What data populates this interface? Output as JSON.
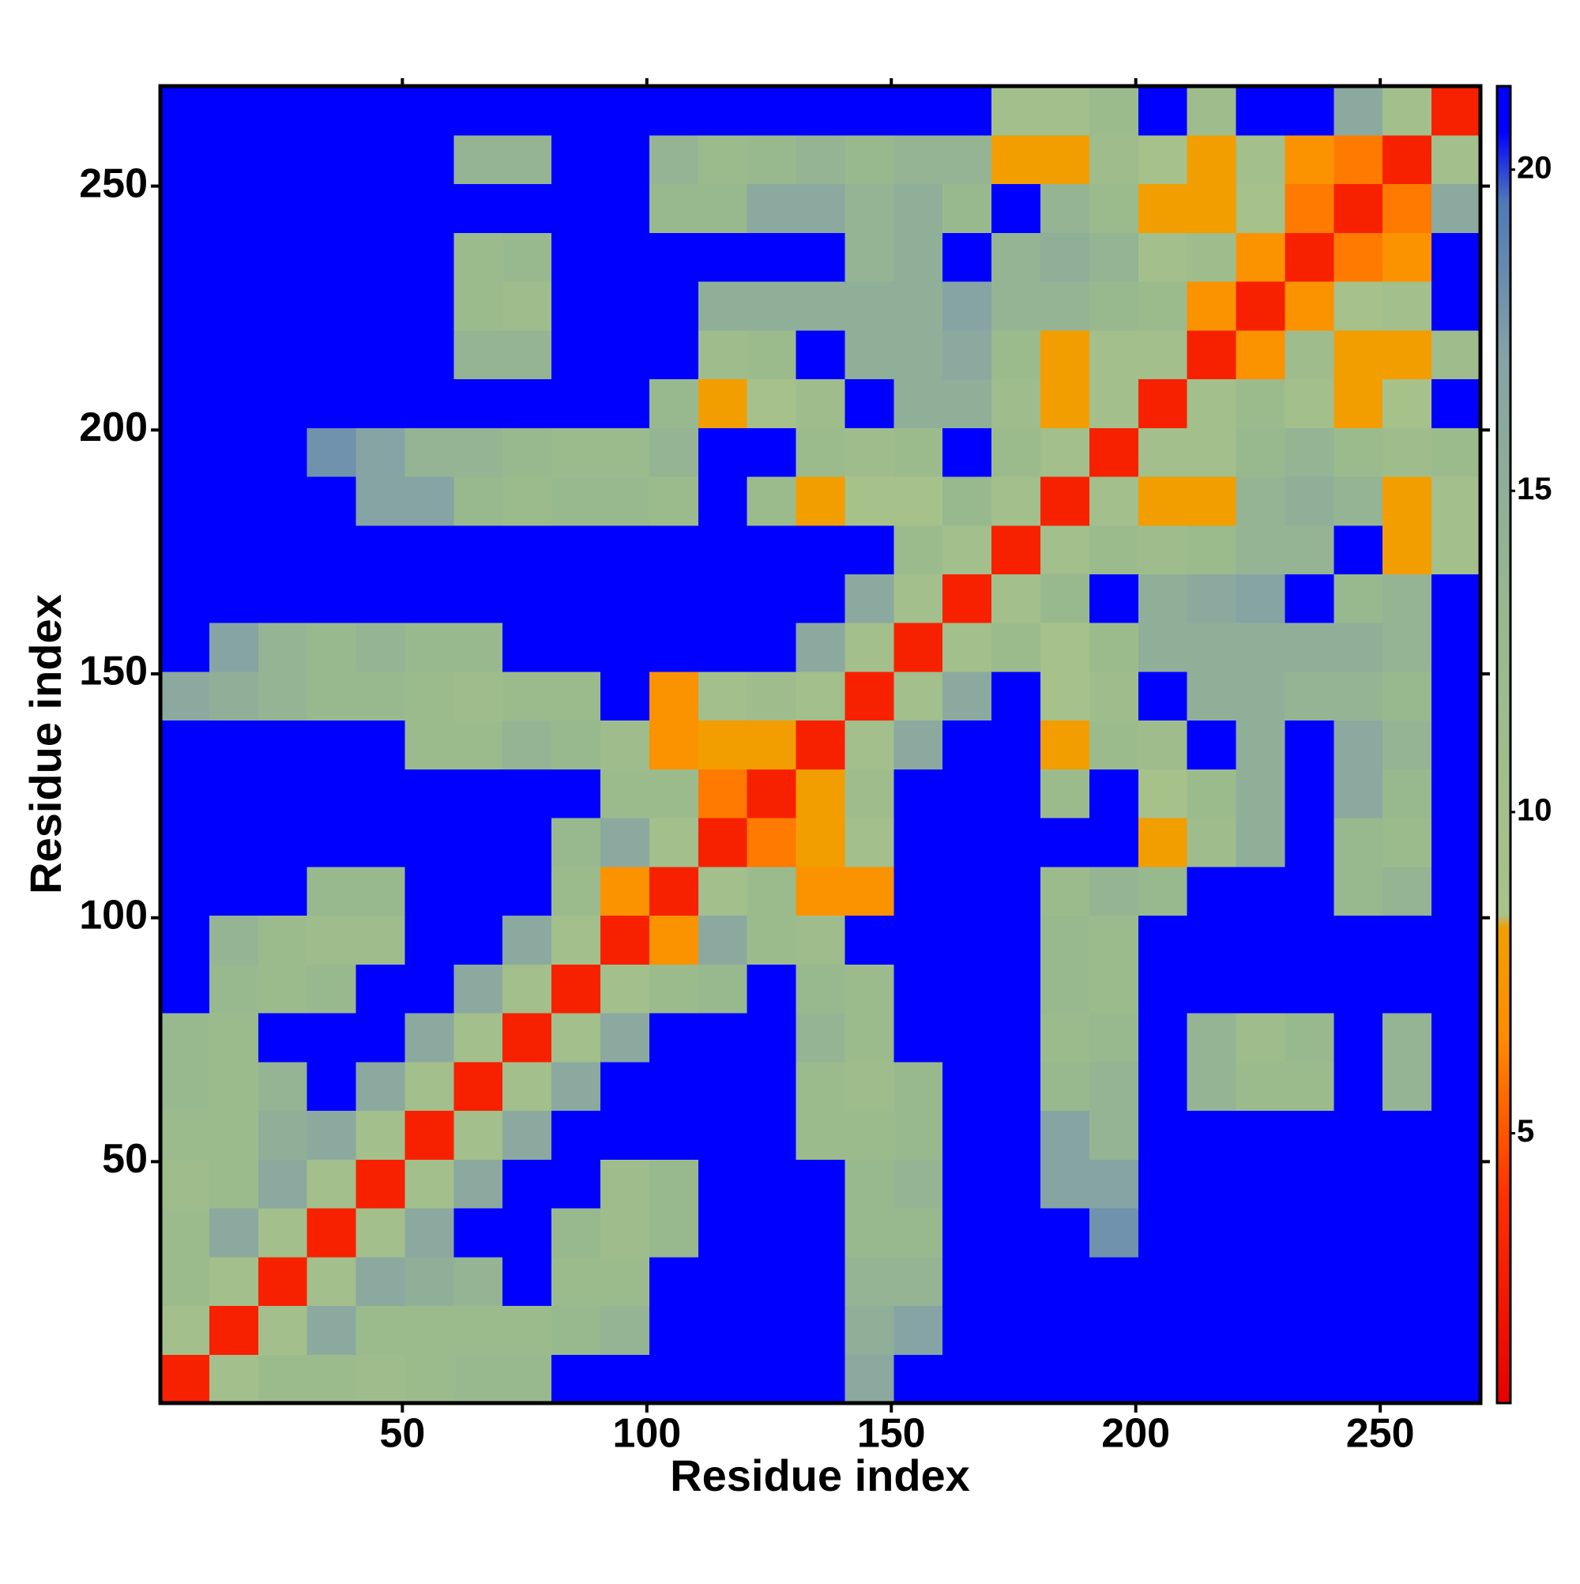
{
  "chart_data": {
    "type": "heatmap",
    "xlabel": "Residue index",
    "ylabel": "Residue index",
    "x": [
      5.5,
      15.5,
      25.5,
      35.5,
      45.5,
      55.5,
      65.5,
      75.5,
      85.5,
      95.5,
      105.5,
      115.5,
      125.5,
      135.5,
      145.5,
      155.5,
      165.5,
      175.5,
      185.5,
      195.5,
      205.5,
      215.5,
      225.5,
      235.5,
      245.5,
      255.5,
      265.5
    ],
    "y": [
      5.5,
      15.5,
      25.5,
      35.5,
      45.5,
      55.5,
      65.5,
      75.5,
      85.5,
      95.5,
      105.5,
      115.5,
      125.5,
      135.5,
      145.5,
      155.5,
      165.5,
      175.5,
      185.5,
      195.5,
      205.5,
      215.5,
      225.5,
      235.5,
      245.5,
      255.5,
      265.5
    ],
    "z": [
      [
        3,
        10,
        12,
        12,
        11,
        12,
        13,
        13,
        21,
        21,
        21,
        21,
        21,
        21,
        16,
        21,
        21,
        21,
        21,
        21,
        21,
        21,
        21,
        21,
        21,
        21,
        21
      ],
      [
        10,
        3,
        10,
        16,
        12,
        12,
        12,
        12,
        13,
        14,
        21,
        21,
        21,
        21,
        15,
        17,
        21,
        21,
        21,
        21,
        21,
        21,
        21,
        21,
        21,
        21,
        21
      ],
      [
        12,
        10,
        3,
        10,
        16,
        15,
        14,
        21,
        12,
        12,
        21,
        21,
        21,
        21,
        14,
        14,
        21,
        21,
        21,
        21,
        21,
        21,
        21,
        21,
        21,
        21,
        21
      ],
      [
        12,
        16,
        10,
        3,
        10,
        16,
        21,
        21,
        13,
        11,
        13,
        21,
        21,
        21,
        13,
        13,
        21,
        21,
        21,
        18,
        21,
        21,
        21,
        21,
        21,
        21,
        21
      ],
      [
        11,
        12,
        16,
        10,
        3,
        10,
        16,
        21,
        21,
        11,
        13,
        21,
        21,
        21,
        13,
        14,
        21,
        21,
        17,
        17,
        21,
        21,
        21,
        21,
        21,
        21,
        21
      ],
      [
        12,
        12,
        15,
        16,
        10,
        3,
        10,
        16,
        21,
        21,
        21,
        21,
        21,
        12,
        12,
        13,
        21,
        21,
        17,
        14,
        21,
        21,
        21,
        21,
        21,
        21,
        21
      ],
      [
        13,
        12,
        14,
        21,
        16,
        10,
        3,
        10,
        16,
        21,
        21,
        21,
        21,
        12,
        11,
        13,
        21,
        21,
        13,
        14,
        21,
        14,
        12,
        12,
        21,
        14,
        21
      ],
      [
        13,
        12,
        21,
        21,
        21,
        16,
        10,
        3,
        10,
        16,
        21,
        21,
        21,
        14,
        12,
        21,
        21,
        21,
        12,
        13,
        21,
        14,
        11,
        13,
        21,
        14,
        21
      ],
      [
        21,
        13,
        12,
        13,
        21,
        21,
        16,
        10,
        3,
        10,
        12,
        13,
        21,
        13,
        12,
        21,
        21,
        21,
        13,
        12,
        21,
        21,
        21,
        21,
        21,
        21,
        21
      ],
      [
        21,
        14,
        12,
        11,
        11,
        21,
        21,
        16,
        10,
        3,
        7,
        16,
        12,
        11,
        21,
        21,
        21,
        21,
        13,
        12,
        21,
        21,
        21,
        21,
        21,
        21,
        21
      ],
      [
        21,
        21,
        21,
        13,
        13,
        21,
        21,
        21,
        12,
        7,
        3,
        10,
        12,
        7,
        7,
        21,
        21,
        21,
        12,
        14,
        13,
        21,
        21,
        21,
        13,
        14,
        21
      ],
      [
        21,
        21,
        21,
        21,
        21,
        21,
        21,
        21,
        13,
        16,
        10,
        3,
        6,
        8,
        10,
        21,
        21,
        21,
        21,
        21,
        8,
        11,
        15,
        21,
        13,
        12,
        21
      ],
      [
        21,
        21,
        21,
        21,
        21,
        21,
        21,
        21,
        21,
        12,
        12,
        6,
        3,
        8,
        11,
        21,
        21,
        21,
        12,
        21,
        9,
        12,
        15,
        21,
        16,
        13,
        21
      ],
      [
        21,
        21,
        21,
        21,
        21,
        12,
        12,
        14,
        13,
        11,
        7,
        8,
        8,
        3,
        10,
        16,
        21,
        21,
        8,
        12,
        11,
        21,
        15,
        21,
        16,
        14,
        21
      ],
      [
        16,
        15,
        14,
        13,
        13,
        12,
        11,
        12,
        12,
        21,
        7,
        10,
        11,
        10,
        3,
        10,
        16,
        21,
        9,
        11,
        21,
        15,
        15,
        14,
        14,
        13,
        21
      ],
      [
        21,
        17,
        14,
        13,
        14,
        13,
        13,
        21,
        21,
        21,
        21,
        21,
        21,
        16,
        10,
        3,
        10,
        12,
        9,
        12,
        15,
        15,
        15,
        15,
        15,
        14,
        21
      ],
      [
        21,
        21,
        21,
        21,
        21,
        21,
        21,
        21,
        21,
        21,
        21,
        21,
        21,
        21,
        16,
        10,
        3,
        10,
        13,
        21,
        15,
        16,
        17,
        21,
        13,
        14,
        21
      ],
      [
        21,
        21,
        21,
        21,
        21,
        21,
        21,
        21,
        21,
        21,
        21,
        21,
        21,
        21,
        21,
        12,
        10,
        3,
        10,
        12,
        11,
        12,
        14,
        14,
        21,
        8,
        10
      ],
      [
        21,
        21,
        21,
        21,
        17,
        17,
        13,
        12,
        13,
        13,
        12,
        21,
        12,
        8,
        9,
        9,
        13,
        10,
        3,
        10,
        8,
        8,
        14,
        15,
        14,
        8,
        10
      ],
      [
        21,
        21,
        21,
        18,
        17,
        14,
        14,
        13,
        12,
        12,
        14,
        21,
        21,
        12,
        11,
        12,
        21,
        12,
        10,
        3,
        10,
        10,
        13,
        14,
        12,
        11,
        12
      ],
      [
        21,
        21,
        21,
        21,
        21,
        21,
        21,
        21,
        21,
        21,
        13,
        8,
        9,
        11,
        21,
        15,
        15,
        11,
        8,
        10,
        3,
        10,
        12,
        10,
        8,
        9,
        21
      ],
      [
        21,
        21,
        21,
        21,
        21,
        21,
        14,
        14,
        21,
        21,
        21,
        11,
        12,
        21,
        15,
        15,
        16,
        12,
        8,
        10,
        10,
        3,
        7,
        11,
        8,
        8,
        11
      ],
      [
        21,
        21,
        21,
        21,
        21,
        21,
        12,
        11,
        21,
        21,
        21,
        15,
        15,
        15,
        15,
        15,
        17,
        14,
        14,
        13,
        12,
        7,
        3,
        7,
        9,
        10,
        21
      ],
      [
        21,
        21,
        21,
        21,
        21,
        21,
        12,
        13,
        21,
        21,
        21,
        21,
        21,
        21,
        14,
        15,
        21,
        14,
        15,
        14,
        10,
        11,
        7,
        3,
        6,
        7,
        21
      ],
      [
        21,
        21,
        21,
        21,
        21,
        21,
        21,
        21,
        21,
        21,
        13,
        13,
        16,
        16,
        14,
        15,
        13,
        21,
        14,
        12,
        8,
        8,
        9,
        6,
        3,
        6,
        16
      ],
      [
        21,
        21,
        21,
        21,
        21,
        21,
        14,
        14,
        21,
        21,
        14,
        12,
        13,
        14,
        13,
        14,
        14,
        8,
        8,
        11,
        9,
        8,
        10,
        7,
        6,
        3,
        10
      ],
      [
        21,
        21,
        21,
        21,
        21,
        21,
        21,
        21,
        21,
        21,
        21,
        21,
        21,
        21,
        21,
        21,
        21,
        10,
        10,
        12,
        21,
        11,
        21,
        21,
        16,
        10,
        3
      ]
    ],
    "xlim": [
      0.5,
      270.5
    ],
    "ylim": [
      0.5,
      270.5
    ],
    "xticks": [
      50,
      100,
      150,
      200,
      250
    ],
    "yticks": [
      50,
      100,
      150,
      200,
      250
    ],
    "zlim": [
      0.8,
      21.3
    ],
    "zticks": [
      5,
      10,
      15,
      20
    ],
    "colorscale": [
      {
        "value": 0.8,
        "color": "#e60000"
      },
      {
        "value": 4,
        "color": "#ff3000"
      },
      {
        "value": 6.5,
        "color": "#ff8c00"
      },
      {
        "value": 8.2,
        "color": "#f0a000"
      },
      {
        "value": 8.4,
        "color": "#a9c28a"
      },
      {
        "value": 13,
        "color": "#98b98e"
      },
      {
        "value": 17,
        "color": "#86a4a4"
      },
      {
        "value": 19.5,
        "color": "#4f78b8"
      },
      {
        "value": 20.6,
        "color": "#0000ff"
      },
      {
        "value": 21.3,
        "color": "#0000ff"
      }
    ]
  }
}
